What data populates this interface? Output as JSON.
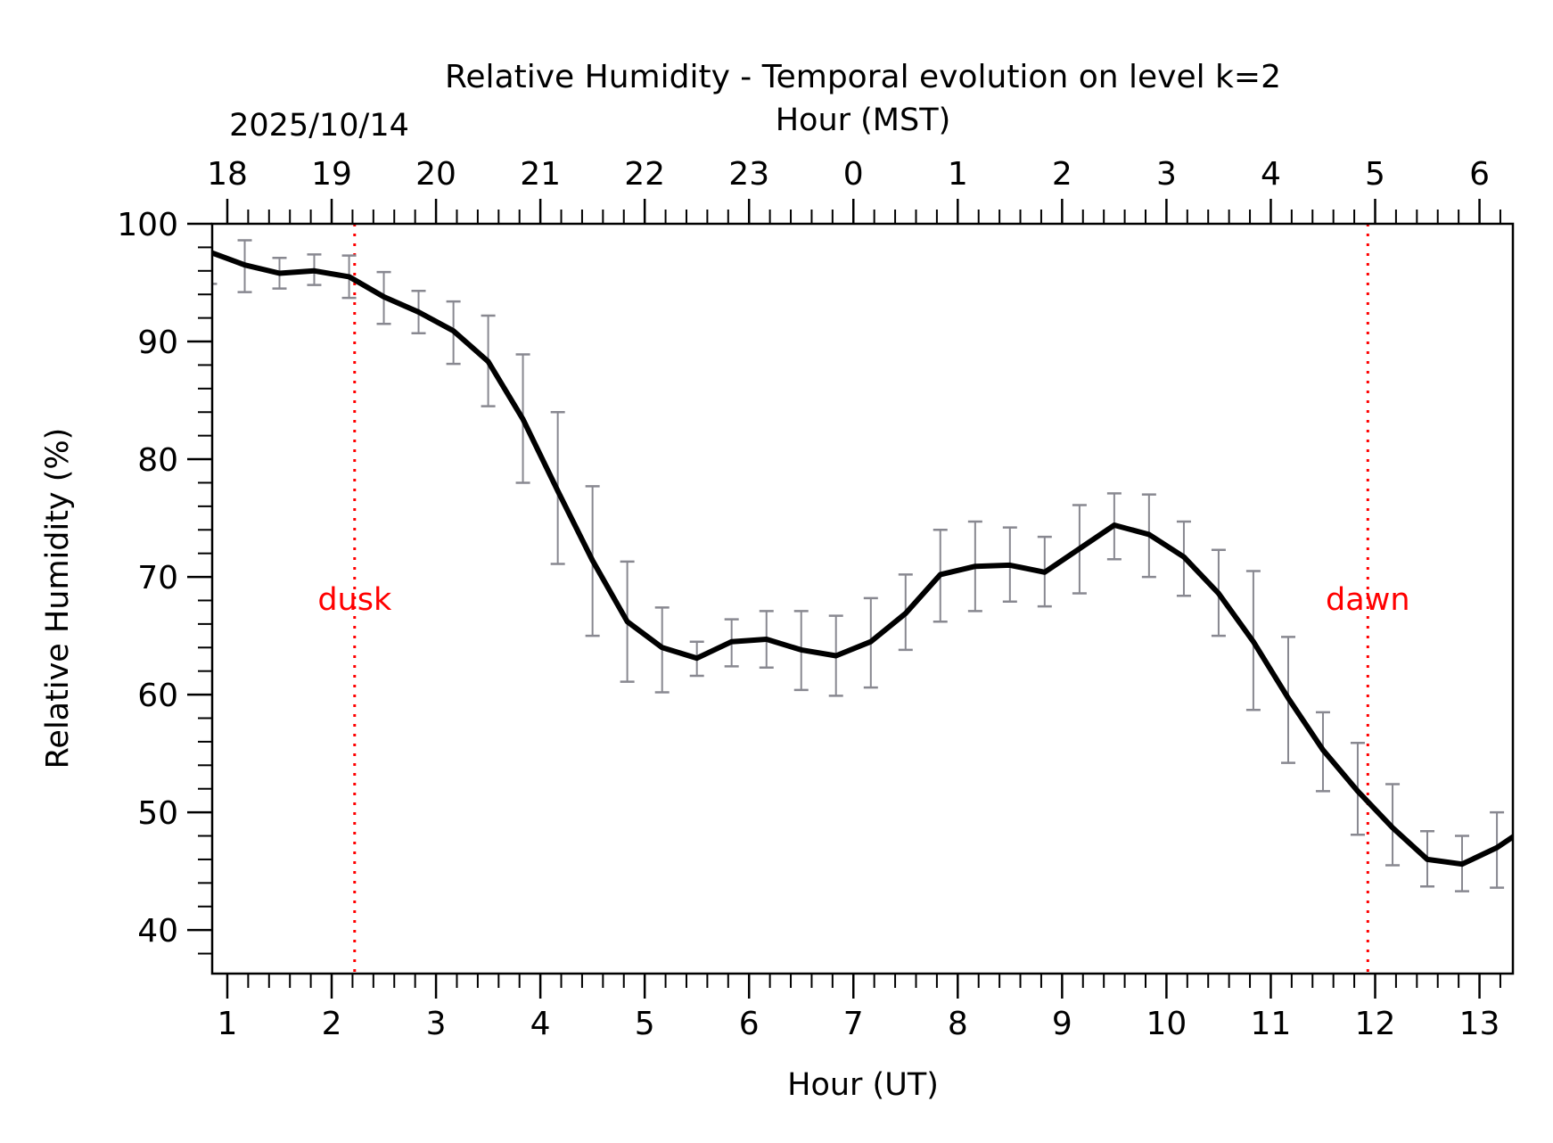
{
  "chart_data": {
    "type": "line",
    "title": "Relative Humidity - Temporal evolution on level k=2",
    "xlabel": "Hour (UT)",
    "ylabel": "Relative Humidity (%)",
    "x2label": "Hour (MST)",
    "date_label": "2025/10/14",
    "xlim": [
      0.855,
      13.32
    ],
    "ylim": [
      36.3,
      100
    ],
    "x_ticks": [
      1,
      2,
      3,
      4,
      5,
      6,
      7,
      8,
      9,
      10,
      11,
      12,
      13
    ],
    "x_tick_labels": [
      "1",
      "2",
      "3",
      "4",
      "5",
      "6",
      "7",
      "8",
      "9",
      "10",
      "11",
      "12",
      "13"
    ],
    "x_minor_step": 0.2,
    "x2_offset_hours": -7,
    "x2_tick_labels": [
      "18",
      "19",
      "20",
      "21",
      "22",
      "23",
      "0",
      "1",
      "2",
      "3",
      "4",
      "5",
      "6"
    ],
    "y_ticks": [
      40,
      50,
      60,
      70,
      80,
      90,
      100
    ],
    "y_tick_labels": [
      "40",
      "50",
      "60",
      "70",
      "80",
      "90",
      "100"
    ],
    "y_minor_step": 2,
    "grid": false,
    "legend": "none",
    "series": [
      {
        "name": "Relative Humidity",
        "color": "#000000",
        "x": [
          0.833,
          1.167,
          1.5,
          1.833,
          2.167,
          2.5,
          2.833,
          3.167,
          3.5,
          3.833,
          4.167,
          4.5,
          4.833,
          5.167,
          5.5,
          5.833,
          6.167,
          6.5,
          6.833,
          7.167,
          7.5,
          7.833,
          8.167,
          8.5,
          8.833,
          9.167,
          9.5,
          9.833,
          10.167,
          10.5,
          10.833,
          11.167,
          11.5,
          11.833,
          12.167,
          12.5,
          12.833,
          13.167,
          13.5
        ],
        "values": [
          97.6,
          96.5,
          95.8,
          96.0,
          95.5,
          93.8,
          92.5,
          90.9,
          88.3,
          83.4,
          77.3,
          71.4,
          66.2,
          64.0,
          63.1,
          64.5,
          64.7,
          63.8,
          63.3,
          64.5,
          66.9,
          70.2,
          70.9,
          71.0,
          70.4,
          72.4,
          74.4,
          73.6,
          71.7,
          68.6,
          64.5,
          59.7,
          55.3,
          51.8,
          48.7,
          46.0,
          45.6,
          47.0,
          49.0
        ],
        "error_upper": [
          100.3,
          98.6,
          97.1,
          97.4,
          97.3,
          95.9,
          94.3,
          93.4,
          92.2,
          88.9,
          84.0,
          77.7,
          71.3,
          67.4,
          64.5,
          66.4,
          67.1,
          67.1,
          66.7,
          68.2,
          70.2,
          74.0,
          74.7,
          74.2,
          73.4,
          76.1,
          77.1,
          77.0,
          74.7,
          72.3,
          70.5,
          64.9,
          58.5,
          55.9,
          52.4,
          48.4,
          48.0,
          50.0,
          51.5
        ],
        "error_lower": [
          94.9,
          94.2,
          94.5,
          94.8,
          93.7,
          91.5,
          90.7,
          88.1,
          84.5,
          78.0,
          71.1,
          65.0,
          61.1,
          60.2,
          61.6,
          62.4,
          62.3,
          60.4,
          59.9,
          60.6,
          63.8,
          66.2,
          67.1,
          67.9,
          67.5,
          68.6,
          71.5,
          70.0,
          68.4,
          65.0,
          58.7,
          54.2,
          51.8,
          48.1,
          45.5,
          43.7,
          43.3,
          43.6,
          46.5
        ]
      }
    ],
    "error_bar_color": "#888890",
    "annotations": [
      {
        "label": "dusk",
        "x": 2.22,
        "y": 68.1,
        "color": "#ff0000",
        "line": "dotted-vertical"
      },
      {
        "label": "dawn",
        "x": 11.93,
        "y": 68.1,
        "color": "#ff0000",
        "line": "dotted-vertical"
      }
    ]
  }
}
